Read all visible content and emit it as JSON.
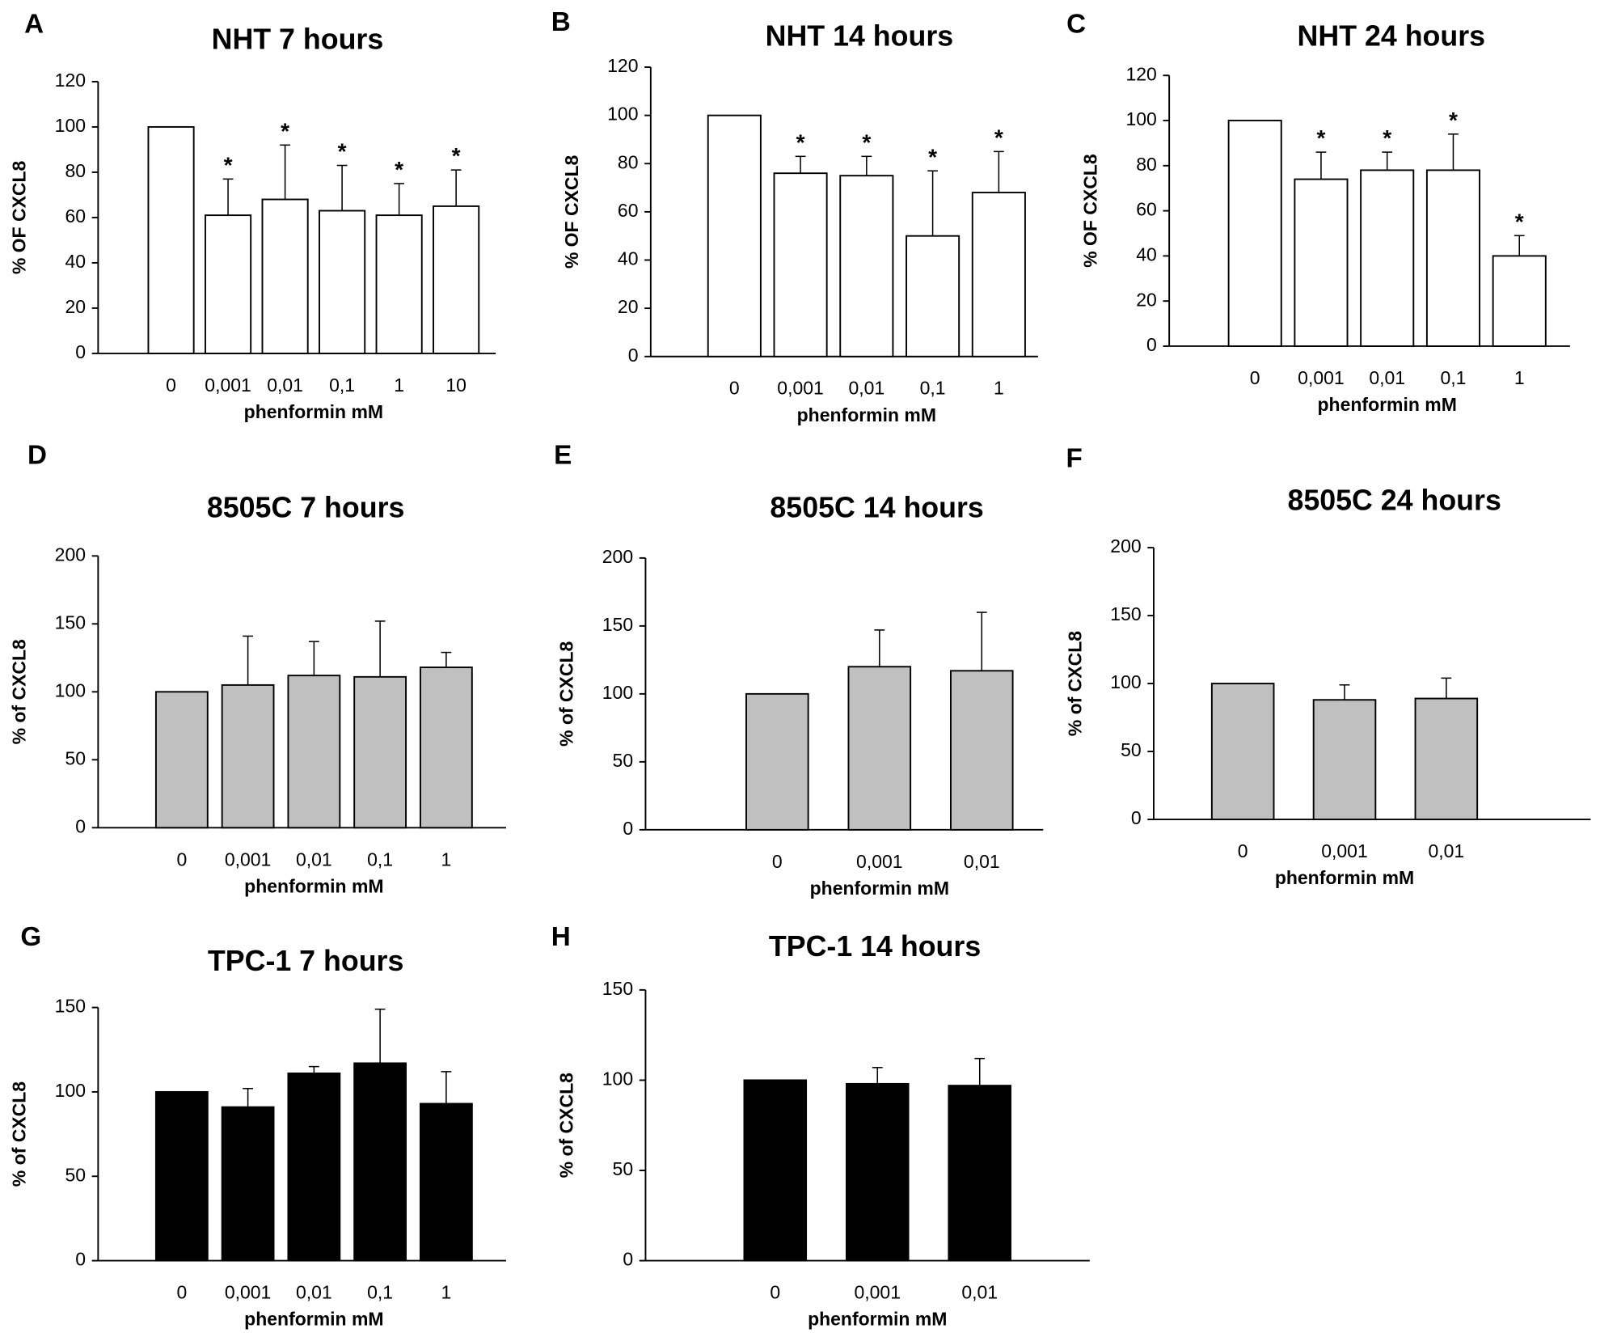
{
  "chart_data": [
    {
      "type": "bar",
      "panel": "A",
      "title": "NHT 7 hours",
      "ylabel": "% OF CXCL8",
      "xlabel": "phenformin mM",
      "color": "#ffffff",
      "categories": [
        "0",
        "0,001",
        "0,01",
        "0,1",
        "1",
        "10"
      ],
      "values": [
        100,
        61,
        68,
        63,
        61,
        65
      ],
      "errors": [
        null,
        16,
        24,
        20,
        14,
        16
      ],
      "annotations": [
        null,
        "*",
        "*",
        "*",
        "*",
        "*"
      ],
      "ylim": [
        0,
        120
      ],
      "yticks": [
        0,
        20,
        40,
        60,
        80,
        100,
        120
      ]
    },
    {
      "type": "bar",
      "panel": "B",
      "title": "NHT 14 hours",
      "ylabel": "% OF CXCL8",
      "xlabel": "phenformin mM",
      "color": "#ffffff",
      "categories": [
        "0",
        "0,001",
        "0,01",
        "0,1",
        "1"
      ],
      "values": [
        100,
        76,
        75,
        50,
        68
      ],
      "errors": [
        null,
        7,
        8,
        27,
        17
      ],
      "annotations": [
        null,
        "*",
        "*",
        "*",
        "*"
      ],
      "ylim": [
        0,
        120
      ],
      "yticks": [
        0,
        20,
        40,
        60,
        80,
        100,
        120
      ]
    },
    {
      "type": "bar",
      "panel": "C",
      "title": "NHT 24 hours",
      "ylabel": "% OF CXCL8",
      "xlabel": "phenformin mM",
      "color": "#ffffff",
      "categories": [
        "0",
        "0,001",
        "0,01",
        "0,1",
        "1"
      ],
      "values": [
        100,
        74,
        78,
        78,
        40
      ],
      "errors": [
        null,
        12,
        8,
        16,
        9
      ],
      "annotations": [
        null,
        "*",
        "*",
        "*",
        "*"
      ],
      "ylim": [
        0,
        120
      ],
      "yticks": [
        0,
        20,
        40,
        60,
        80,
        100,
        120
      ]
    },
    {
      "type": "bar",
      "panel": "D",
      "title": "8505C 7 hours",
      "ylabel": "% of CXCL8",
      "xlabel": "phenformin mM",
      "color": "#c0c0c0",
      "categories": [
        "0",
        "0,001",
        "0,01",
        "0,1",
        "1"
      ],
      "values": [
        100,
        105,
        112,
        111,
        118
      ],
      "errors": [
        null,
        36,
        25,
        41,
        11
      ],
      "ylim": [
        0,
        200
      ],
      "yticks": [
        0,
        50,
        100,
        150,
        200
      ]
    },
    {
      "type": "bar",
      "panel": "E",
      "title": "8505C 14 hours",
      "ylabel": "% of CXCL8",
      "xlabel": "phenformin mM",
      "color": "#c0c0c0",
      "categories": [
        "0",
        "0,001",
        "0,01"
      ],
      "values": [
        100,
        120,
        117
      ],
      "errors": [
        null,
        27,
        43
      ],
      "ylim": [
        0,
        200
      ],
      "yticks": [
        0,
        50,
        100,
        150,
        200
      ]
    },
    {
      "type": "bar",
      "panel": "F",
      "title": "8505C 24 hours",
      "ylabel": "% of CXCL8",
      "xlabel": "phenformin mM",
      "color": "#c0c0c0",
      "categories": [
        "0",
        "0,001",
        "0,01"
      ],
      "values": [
        100,
        88,
        89
      ],
      "errors": [
        null,
        11,
        15
      ],
      "ylim": [
        0,
        200
      ],
      "yticks": [
        0,
        50,
        100,
        150,
        200
      ]
    },
    {
      "type": "bar",
      "panel": "G",
      "title": "TPC-1 7 hours",
      "ylabel": "% of CXCL8",
      "xlabel": "phenformin mM",
      "color": "#000000",
      "categories": [
        "0",
        "0,001",
        "0,01",
        "0,1",
        "1"
      ],
      "values": [
        100,
        91,
        111,
        117,
        93
      ],
      "errors": [
        null,
        11,
        4,
        32,
        19
      ],
      "ylim": [
        0,
        150
      ],
      "yticks": [
        0,
        50,
        100,
        150
      ]
    },
    {
      "type": "bar",
      "panel": "H",
      "title": "TPC-1 14 hours",
      "ylabel": "% of CXCL8",
      "xlabel": "phenformin mM",
      "color": "#000000",
      "categories": [
        "0",
        "0,001",
        "0,01"
      ],
      "values": [
        100,
        98,
        97
      ],
      "errors": [
        null,
        9,
        15
      ],
      "ylim": [
        0,
        150
      ],
      "yticks": [
        0,
        50,
        100,
        150
      ]
    }
  ]
}
